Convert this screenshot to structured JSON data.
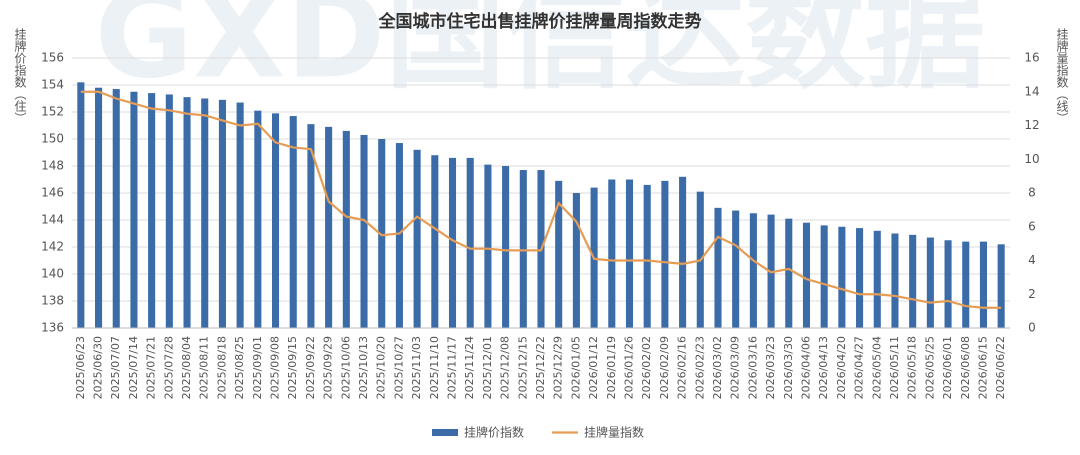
{
  "chart_data": {
    "type": "bar",
    "title": "全国城市住宅出售挂牌价挂牌量周指数走势",
    "y_label": "挂牌价指数（住）",
    "y2_label": "挂牌量指数（线）",
    "watermark": "GXD国信达数据",
    "categories": [
      "2025/06/23",
      "2025/06/30",
      "2025/07/07",
      "2025/07/14",
      "2025/07/21",
      "2025/07/28",
      "2025/08/04",
      "2025/08/11",
      "2025/08/18",
      "2025/08/25",
      "2025/09/01",
      "2025/09/08",
      "2025/09/15",
      "2025/09/22",
      "2025/09/29",
      "2025/10/06",
      "2025/10/13",
      "2025/10/20",
      "2025/10/27",
      "2025/11/03",
      "2025/11/10",
      "2025/11/17",
      "2025/11/24",
      "2025/12/01",
      "2025/12/08",
      "2025/12/15",
      "2025/12/22",
      "2025/12/29",
      "2026/01/05",
      "2026/01/12",
      "2026/01/19",
      "2026/01/26",
      "2026/02/02",
      "2026/02/09",
      "2026/02/16",
      "2026/02/23",
      "2026/03/02",
      "2026/03/09",
      "2026/03/16",
      "2026/03/23",
      "2026/03/30",
      "2026/04/06",
      "2026/04/13",
      "2026/04/20",
      "2026/04/27",
      "2026/05/04",
      "2026/05/11",
      "2026/05/18",
      "2026/05/25",
      "2026/06/01",
      "2026/06/08",
      "2026/06/15",
      "2026/06/22"
    ],
    "series": [
      {
        "name": "挂牌价指数",
        "type": "bar",
        "color": "#3b6ca8",
        "values": [
          154.2,
          153.8,
          153.7,
          153.5,
          153.4,
          153.3,
          153.1,
          153.0,
          152.9,
          152.7,
          152.1,
          151.9,
          151.7,
          151.1,
          150.9,
          150.6,
          150.3,
          150.0,
          149.7,
          149.2,
          148.8,
          148.6,
          148.6,
          148.1,
          148.0,
          147.7,
          147.7,
          146.9,
          146.0,
          146.4,
          147.0,
          147.0,
          146.6,
          146.9,
          147.2,
          146.1,
          144.9,
          144.7,
          144.5,
          144.4,
          144.1,
          143.8,
          143.6,
          143.5,
          143.4,
          143.2,
          143.0,
          142.9,
          142.7,
          142.5,
          142.4,
          142.4,
          142.2
        ]
      },
      {
        "name": "挂牌量指数",
        "type": "line",
        "axis": "y2",
        "color": "#e59c55",
        "values": [
          14.0,
          14.0,
          13.6,
          13.3,
          13.0,
          12.9,
          12.7,
          12.6,
          12.3,
          12.0,
          12.1,
          11.0,
          10.7,
          10.6,
          7.5,
          6.6,
          6.4,
          5.5,
          5.6,
          6.6,
          5.9,
          5.2,
          4.7,
          4.7,
          4.6,
          4.6,
          4.6,
          7.4,
          6.3,
          4.1,
          4.0,
          4.0,
          4.0,
          3.9,
          3.8,
          4.0,
          5.4,
          4.9,
          4.0,
          3.3,
          3.5,
          2.9,
          2.6,
          2.3,
          2.0,
          2.0,
          1.9,
          1.7,
          1.5,
          1.6,
          1.3,
          1.2,
          1.2
        ]
      }
    ],
    "ylim": [
      136,
      156
    ],
    "yticks": [
      136,
      138,
      140,
      142,
      144,
      146,
      148,
      150,
      152,
      154,
      156
    ],
    "y2lim": [
      0,
      16
    ],
    "y2ticks": [
      0,
      2,
      4,
      6,
      8,
      10,
      12,
      14,
      16
    ],
    "grid": true
  }
}
